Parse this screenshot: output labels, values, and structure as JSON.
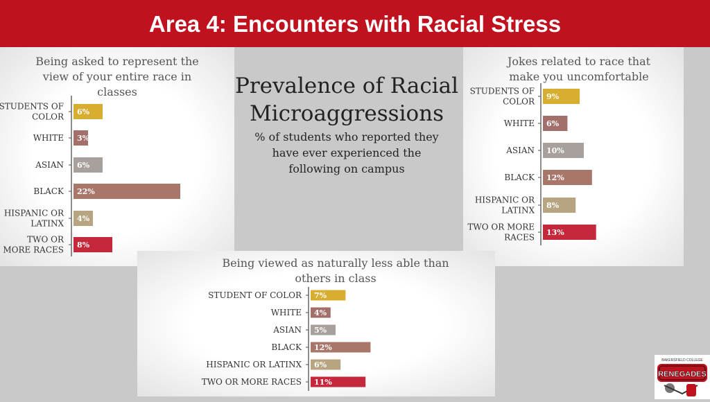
{
  "header": {
    "title": "Area 4: Encounters with Racial Stress"
  },
  "center": {
    "heading_line1": "Prevalence of Racial",
    "heading_line2": "Microaggressions",
    "sub_line1": "% of students who reported they",
    "sub_line2": "have ever experienced the",
    "sub_line3": "following on campus"
  },
  "panels": {
    "left": {
      "title_lines": [
        "Being asked to represent the",
        "view of your entire race in",
        "classes"
      ]
    },
    "right": {
      "title_lines": [
        "Jokes related to race that",
        "make you uncomfortable"
      ]
    },
    "bottom": {
      "title_lines": [
        "Being viewed as naturally less able than",
        "others in class"
      ]
    }
  },
  "logo": {
    "text_top": "BAKERSFIELD COLLEGE",
    "text_main": "RENEGADES"
  },
  "colors": {
    "header": "#c0111f",
    "bars": [
      "#d8ae30",
      "#a36f6a",
      "#a8a09c",
      "#a9766a",
      "#b7a582",
      "#c4283a"
    ]
  },
  "chart_data": [
    {
      "type": "bar",
      "orientation": "horizontal",
      "title": "Being asked to represent the view of your entire race in classes",
      "categories": [
        [
          "STUDENTS OF",
          "COLOR"
        ],
        [
          "WHITE"
        ],
        [
          "ASIAN"
        ],
        [
          "BLACK"
        ],
        [
          "HISPANIC OR",
          "LATINX"
        ],
        [
          "TWO OR",
          "MORE RACES"
        ]
      ],
      "values": [
        6,
        3,
        6,
        22,
        4,
        8
      ],
      "labels": [
        "6%",
        "3%",
        "6%",
        "22%",
        "4%",
        "8%"
      ],
      "grid": false,
      "legend": "none"
    },
    {
      "type": "bar",
      "orientation": "horizontal",
      "title": "Jokes related to race that make you uncomfortable",
      "categories": [
        [
          "STUDENTS OF",
          "COLOR"
        ],
        [
          "WHITE"
        ],
        [
          "ASIAN"
        ],
        [
          "BLACK"
        ],
        [
          "HISPANIC OR",
          "LATINX"
        ],
        [
          "TWO OR MORE",
          "RACES"
        ]
      ],
      "values": [
        9,
        6,
        10,
        12,
        8,
        13
      ],
      "labels": [
        "9%",
        "6%",
        "10%",
        "12%",
        "8%",
        "13%"
      ],
      "grid": false,
      "legend": "none"
    },
    {
      "type": "bar",
      "orientation": "horizontal",
      "title": "Being viewed as naturally less able than others in class",
      "categories": [
        [
          "STUDENT OF COLOR"
        ],
        [
          "WHITE"
        ],
        [
          "ASIAN"
        ],
        [
          "BLACK"
        ],
        [
          "HISPANIC OR LATINX"
        ],
        [
          "TWO OR MORE RACES"
        ]
      ],
      "values": [
        7,
        4,
        5,
        12,
        6,
        11
      ],
      "labels": [
        "7%",
        "4%",
        "5%",
        "12%",
        "6%",
        "11%"
      ],
      "grid": false,
      "legend": "none"
    }
  ]
}
